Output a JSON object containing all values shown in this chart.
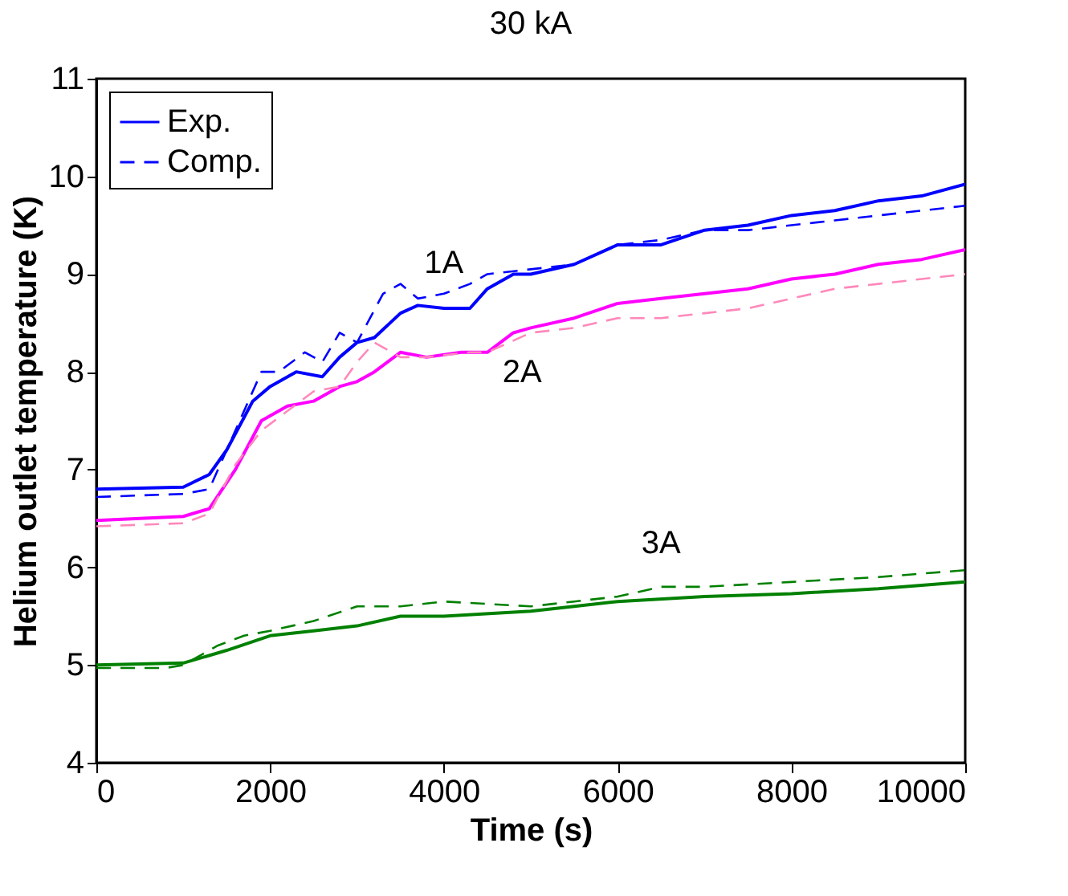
{
  "chart_data": {
    "type": "line",
    "title": "30 kA",
    "xlabel": "Time (s)",
    "ylabel": "Helium outlet temperature (K)",
    "xlim": [
      0,
      10000
    ],
    "xticks": [
      0,
      2000,
      4000,
      6000,
      8000,
      10000
    ],
    "ylim": [
      4,
      11
    ],
    "yticks": [
      4,
      5,
      6,
      7,
      8,
      9,
      10,
      11
    ],
    "grid": false,
    "legend": "top left",
    "marker": "none",
    "series": [
      {
        "name": "Exp.",
        "color": "#0000ff",
        "line_style": "solid",
        "x": [
          0,
          1000,
          1300,
          1500,
          1800,
          2000,
          2300,
          2600,
          2800,
          3000,
          3200,
          3500,
          3700,
          4000,
          4300,
          4500,
          4800,
          5000,
          5500,
          6000,
          6500,
          7000,
          7500,
          8000,
          8500,
          9000,
          9500,
          10000
        ],
        "values": [
          6.8,
          6.82,
          6.95,
          7.2,
          7.7,
          7.85,
          8.0,
          7.95,
          8.15,
          8.3,
          8.35,
          8.6,
          8.68,
          8.65,
          8.65,
          8.85,
          9.0,
          9.0,
          9.1,
          9.3,
          9.3,
          9.45,
          9.5,
          9.6,
          9.65,
          9.75,
          9.8,
          9.92
        ]
      },
      {
        "name": "Comp.",
        "color": "#0000ff",
        "line_style": "dashed",
        "x": [
          0,
          1000,
          1300,
          1600,
          1900,
          2100,
          2400,
          2600,
          2800,
          3000,
          3300,
          3500,
          3700,
          4000,
          4300,
          4500,
          5000,
          5500,
          6000,
          6500,
          7000,
          7500,
          8000,
          8500,
          9000,
          9500,
          10000
        ],
        "values": [
          6.72,
          6.75,
          6.8,
          7.4,
          8.0,
          8.0,
          8.2,
          8.1,
          8.4,
          8.3,
          8.8,
          8.9,
          8.75,
          8.8,
          8.9,
          9.0,
          9.05,
          9.1,
          9.3,
          9.35,
          9.45,
          9.45,
          9.5,
          9.55,
          9.6,
          9.65,
          9.7
        ]
      },
      {
        "color": "#ff00ff",
        "line_style": "solid",
        "x": [
          0,
          1000,
          1300,
          1600,
          1900,
          2200,
          2500,
          2800,
          3000,
          3200,
          3500,
          3800,
          4200,
          4500,
          4800,
          5000,
          5500,
          6000,
          6500,
          7000,
          7500,
          8000,
          8500,
          9000,
          9500,
          10000
        ],
        "values": [
          6.48,
          6.52,
          6.6,
          7.0,
          7.5,
          7.65,
          7.7,
          7.85,
          7.9,
          8.0,
          8.2,
          8.15,
          8.2,
          8.2,
          8.4,
          8.45,
          8.55,
          8.7,
          8.75,
          8.8,
          8.85,
          8.95,
          9.0,
          9.1,
          9.15,
          9.25
        ]
      },
      {
        "color": "#ff88bb",
        "line_style": "dashed",
        "x": [
          0,
          1000,
          1300,
          1600,
          1900,
          2200,
          2500,
          2800,
          3000,
          3200,
          3500,
          3800,
          4300,
          4500,
          5000,
          5500,
          6000,
          6500,
          7000,
          7500,
          8000,
          8500,
          9000,
          9500,
          10000
        ],
        "values": [
          6.42,
          6.45,
          6.55,
          7.05,
          7.4,
          7.6,
          7.8,
          7.85,
          8.1,
          8.3,
          8.15,
          8.15,
          8.2,
          8.2,
          8.4,
          8.45,
          8.55,
          8.55,
          8.6,
          8.65,
          8.75,
          8.85,
          8.9,
          8.95,
          9.0
        ]
      },
      {
        "color": "#008000",
        "line_style": "solid",
        "x": [
          0,
          1000,
          1500,
          2000,
          2500,
          3000,
          3500,
          4000,
          5000,
          5500,
          6000,
          7000,
          8000,
          9000,
          10000
        ],
        "values": [
          5.0,
          5.02,
          5.15,
          5.3,
          5.35,
          5.4,
          5.5,
          5.5,
          5.55,
          5.6,
          5.65,
          5.7,
          5.73,
          5.78,
          5.85
        ]
      },
      {
        "color": "#008000",
        "line_style": "dashed",
        "x": [
          0,
          800,
          1000,
          1400,
          1700,
          2000,
          2500,
          3000,
          3500,
          4000,
          5000,
          5500,
          6000,
          6500,
          7000,
          8000,
          9000,
          10000
        ],
        "values": [
          4.97,
          4.97,
          5.0,
          5.2,
          5.3,
          5.35,
          5.45,
          5.6,
          5.6,
          5.65,
          5.6,
          5.65,
          5.7,
          5.8,
          5.8,
          5.85,
          5.9,
          5.97
        ]
      }
    ],
    "annotations": [
      "1A",
      "2A",
      "3A"
    ]
  }
}
